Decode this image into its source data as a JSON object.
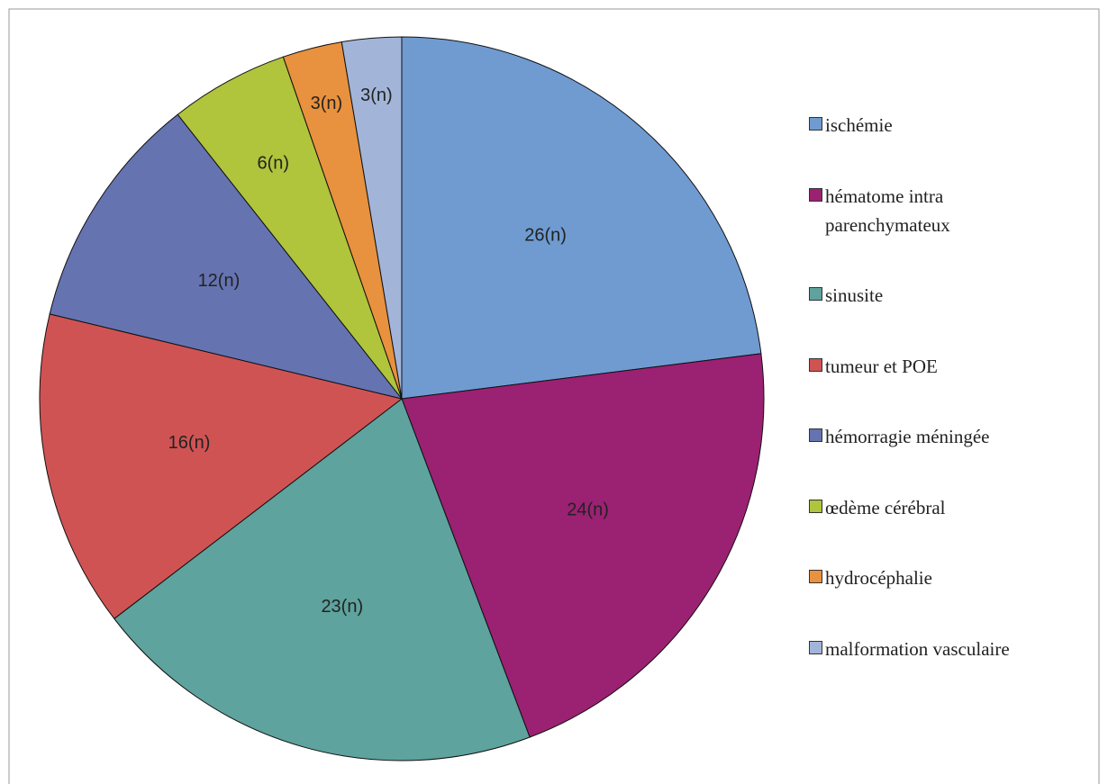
{
  "chart_data": {
    "type": "pie",
    "categories": [
      "ischémie",
      "hématome intra parenchymateux",
      "sinusite",
      "tumeur et POE",
      "hémorragie méningée",
      "œdème cérébral",
      "hydrocéphalie",
      "malformation vasculaire"
    ],
    "values": [
      26,
      24,
      23,
      16,
      12,
      6,
      3,
      3
    ],
    "value_labels": [
      "26(n)",
      "24(n)",
      "23(n)",
      "16(n)",
      "12(n)",
      "6(n)",
      "3(n)",
      "3(n)"
    ],
    "colors": [
      "#6f9bd1",
      "#9b2173",
      "#5ea39d",
      "#d05354",
      "#6573b1",
      "#b0c43c",
      "#e8913e",
      "#a2b5d9"
    ],
    "legend": "right"
  }
}
